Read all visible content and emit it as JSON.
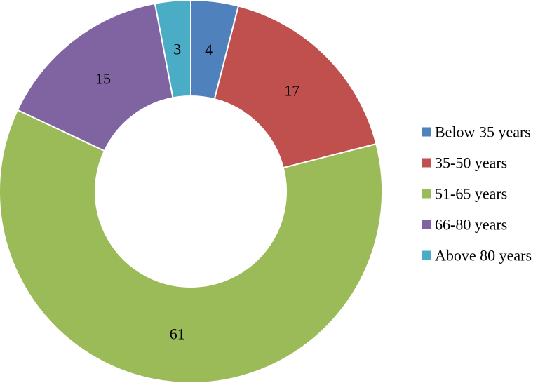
{
  "chart_data": {
    "type": "pie",
    "variant": "donut",
    "title": "",
    "categories": [
      "Below 35 years",
      "35-50 years",
      "51-65 years",
      "66-80 years",
      "Above 80 years"
    ],
    "values": [
      4,
      17,
      61,
      15,
      3
    ],
    "data_labels": [
      "4",
      "17",
      "61",
      "15",
      "3"
    ],
    "colors": [
      "#4F81BD",
      "#C0504D",
      "#9BBB59",
      "#8064A2",
      "#4BACC6"
    ],
    "legend": {
      "placement": "right",
      "entries": [
        "Below 35 years",
        "35-50 years",
        "51-65 years",
        "66-80 years",
        "Above 80 years"
      ]
    }
  }
}
